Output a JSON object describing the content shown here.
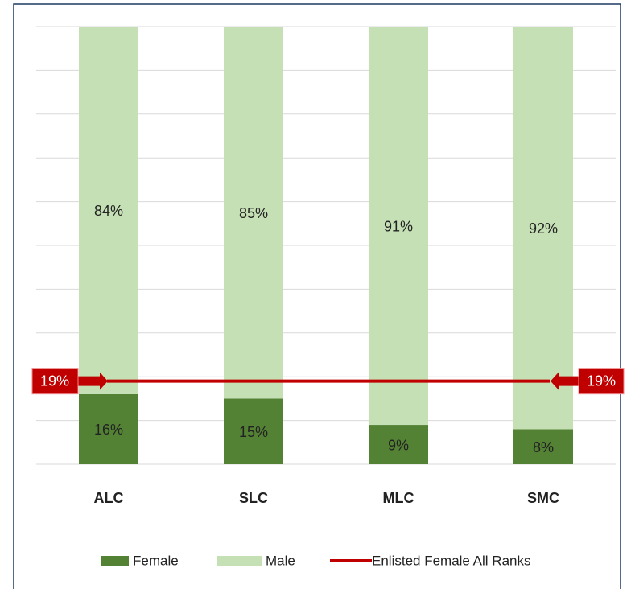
{
  "chart_data": {
    "type": "stacked_bar",
    "categories": [
      "ALC",
      "SLC",
      "MLC",
      "SMC"
    ],
    "series": [
      {
        "name": "Female",
        "color": "#548235",
        "values": [
          16,
          15,
          9,
          8
        ],
        "value_labels": [
          "16%",
          "15%",
          "9%",
          "8%"
        ]
      },
      {
        "name": "Male",
        "color": "#c5e0b4",
        "values": [
          84,
          85,
          91,
          92
        ],
        "value_labels": [
          "84%",
          "85%",
          "91%",
          "92%"
        ]
      }
    ],
    "reference_line": {
      "name": "Enlisted Female All Ranks",
      "value": 19,
      "value_label": "19%",
      "color": "#c00000"
    },
    "ylim": [
      0,
      100
    ],
    "yticks": [
      0,
      10,
      20,
      30,
      40,
      50,
      60,
      70,
      80,
      90,
      100
    ],
    "grid": true,
    "legend": "bottom"
  }
}
